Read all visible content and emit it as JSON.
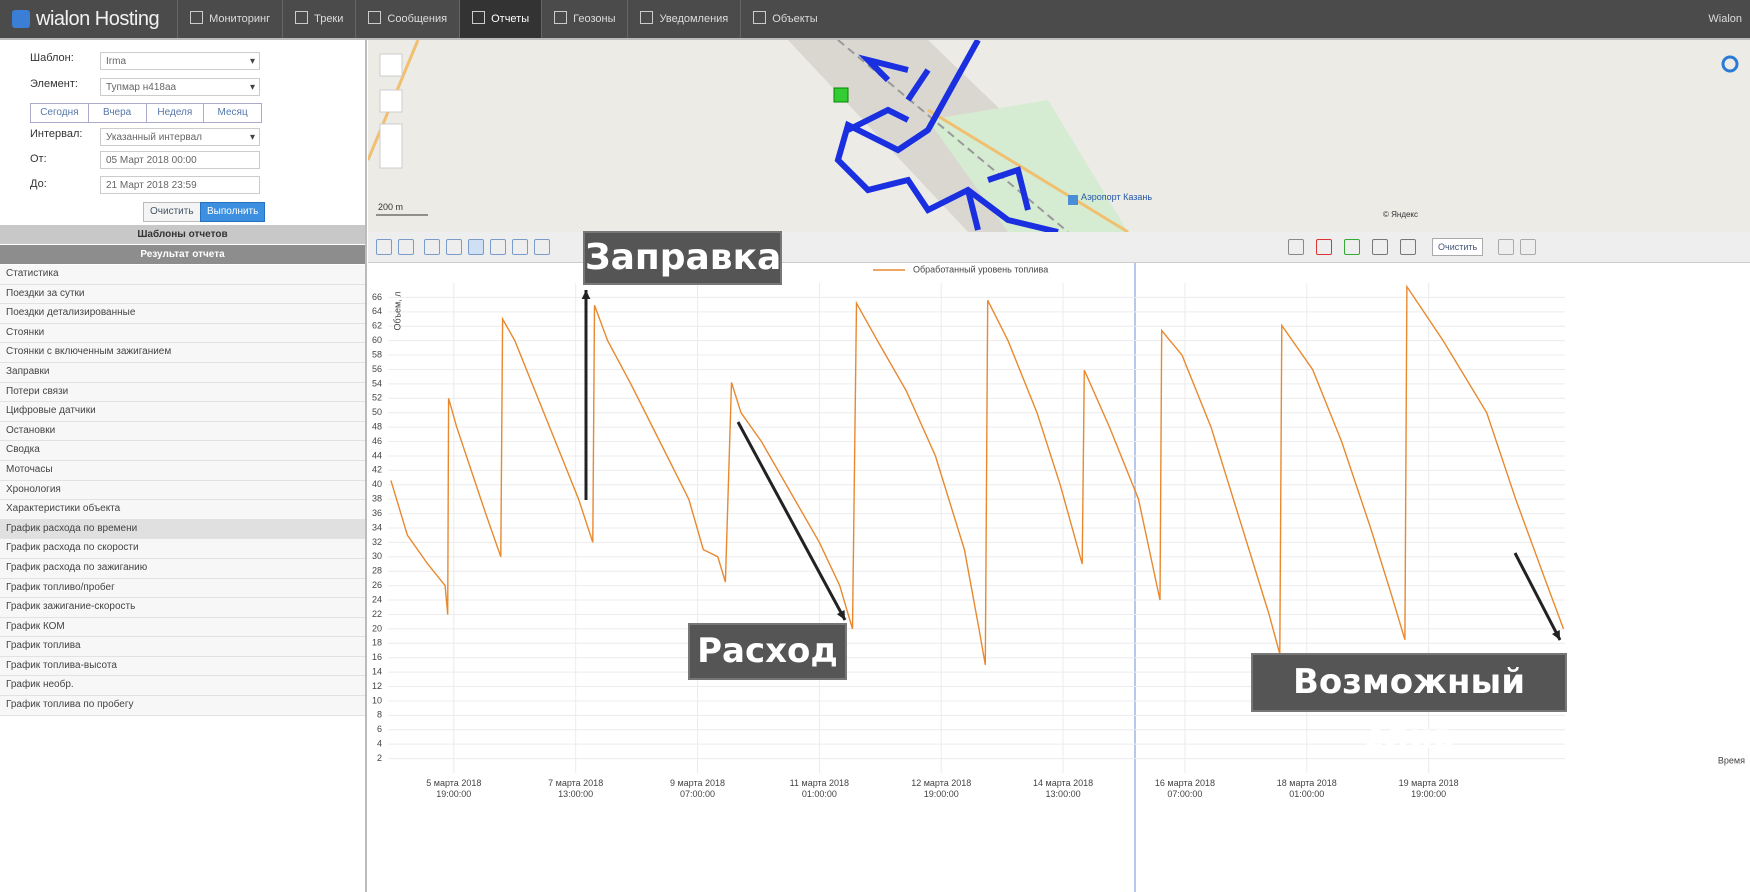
{
  "nav": {
    "logo": "wialon Hosting",
    "items": [
      "Мониторинг",
      "Треки",
      "Сообщения",
      "Отчеты",
      "Геозоны",
      "Уведомления",
      "Объекты"
    ],
    "user": "Wialon"
  },
  "form": {
    "template_label": "Шаблон:",
    "template_value": "Irma",
    "element_label": "Элемент:",
    "element_value": "Тупмар н418аа",
    "periods": [
      "Сегодня",
      "Вчера",
      "Неделя",
      "Месяц"
    ],
    "interval_label": "Интервал:",
    "interval_value": "Указанный интервал",
    "from_label": "От:",
    "from_value": "05 Март 2018 00:00",
    "to_label": "До:",
    "to_value": "21 Март 2018 23:59",
    "clear": "Очистить",
    "run": "Выполнить"
  },
  "templates_header": "Шаблоны отчетов",
  "result_header": "Результат отчета",
  "reports": [
    "Статистика",
    "Поездки за сутки",
    "Поездки детализированные",
    "Стоянки",
    "Стоянки с включенным зажиганием",
    "Заправки",
    "Потери связи",
    "Цифровые датчики",
    "Остановки",
    "Сводка",
    "Моточасы",
    "Хронология",
    "Характеристики объекта",
    "График расхода по времени",
    "График расхода по скорости",
    "График расхода по зажиганию",
    "График топливо/пробег",
    "График зажигание-скорость",
    "График КОМ",
    "График топлива",
    "График топлива-высота",
    "График необр.",
    "График топлива по пробегу"
  ],
  "map": {
    "airport": "Аэропорт Казань",
    "scale": "200 m",
    "copyright": "© Яндекс"
  },
  "toolbar": {
    "clear": "Очистить"
  },
  "chart_data": {
    "type": "line",
    "y_label": "Объем, л",
    "x_label": "Время",
    "annotations": [
      "Заправка",
      "Расход",
      "Возможный слив"
    ],
    "x": [
      -2.7,
      3,
      10,
      16,
      16.9,
      17.2,
      20,
      25,
      30,
      35.2,
      35.8,
      40,
      48,
      56,
      62,
      66.9,
      67.5,
      72,
      80,
      90,
      100,
      105,
      110,
      112.6,
      114.7,
      118,
      125,
      135,
      145,
      152,
      156.4,
      157.8,
      165,
      175,
      185,
      195,
      200,
      202.2,
      203,
      210,
      220,
      228,
      235.6,
      236.3,
      245,
      255,
      262.4,
      263,
      270,
      280,
      290,
      300,
      303.7,
      304.4,
      315,
      325,
      335,
      342,
      346.8,
      347.5,
      360,
      375,
      385,
      395,
      401.5
    ],
    "series": [
      {
        "name": "Обработанный уровень топлива",
        "color": "#e8892f",
        "values": [
          40.6,
          33,
          29,
          26,
          22,
          52,
          48,
          42,
          36,
          30,
          63,
          60,
          52,
          44,
          38,
          32,
          64.9,
          60,
          54,
          46,
          38,
          31,
          30,
          26.5,
          54.2,
          50,
          46,
          39,
          32,
          26,
          20,
          65.2,
          60,
          53,
          44,
          31,
          20,
          15,
          65.6,
          60,
          50,
          40,
          29,
          55.9,
          48,
          38,
          24,
          61.4,
          58,
          48,
          35,
          22,
          16.5,
          62.1,
          56,
          46,
          34,
          25,
          18.5,
          67.5,
          60,
          50,
          38,
          27,
          20
        ]
      }
    ],
    "xlim": [
      -3,
      402
    ],
    "xticks": [
      {
        "value": 19,
        "label": "5 марта 2018 19:00:00"
      },
      {
        "value": 61,
        "label": "7 марта 2018 13:00:00"
      },
      {
        "value": 103,
        "label": "9 марта 2018 07:00:00"
      },
      {
        "value": 145,
        "label": "11 марта 2018 01:00:00"
      },
      {
        "value": 187,
        "label": "12 марта 2018 19:00:00"
      },
      {
        "value": 229,
        "label": "14 марта 2018 13:00:00"
      },
      {
        "value": 271,
        "label": "16 марта 2018 07:00:00"
      },
      {
        "value": 313,
        "label": "18 марта 2018 01:00:00"
      },
      {
        "value": 355,
        "label": "19 марта 2018 19:00:00"
      }
    ],
    "ylim": [
      0,
      68
    ],
    "yticks": [
      2,
      4,
      6,
      8,
      10,
      12,
      14,
      16,
      18,
      20,
      22,
      24,
      26,
      28,
      30,
      32,
      34,
      36,
      38,
      40,
      42,
      44,
      46,
      48,
      50,
      52,
      54,
      56,
      58,
      60,
      62,
      64,
      66
    ],
    "grid": true
  }
}
